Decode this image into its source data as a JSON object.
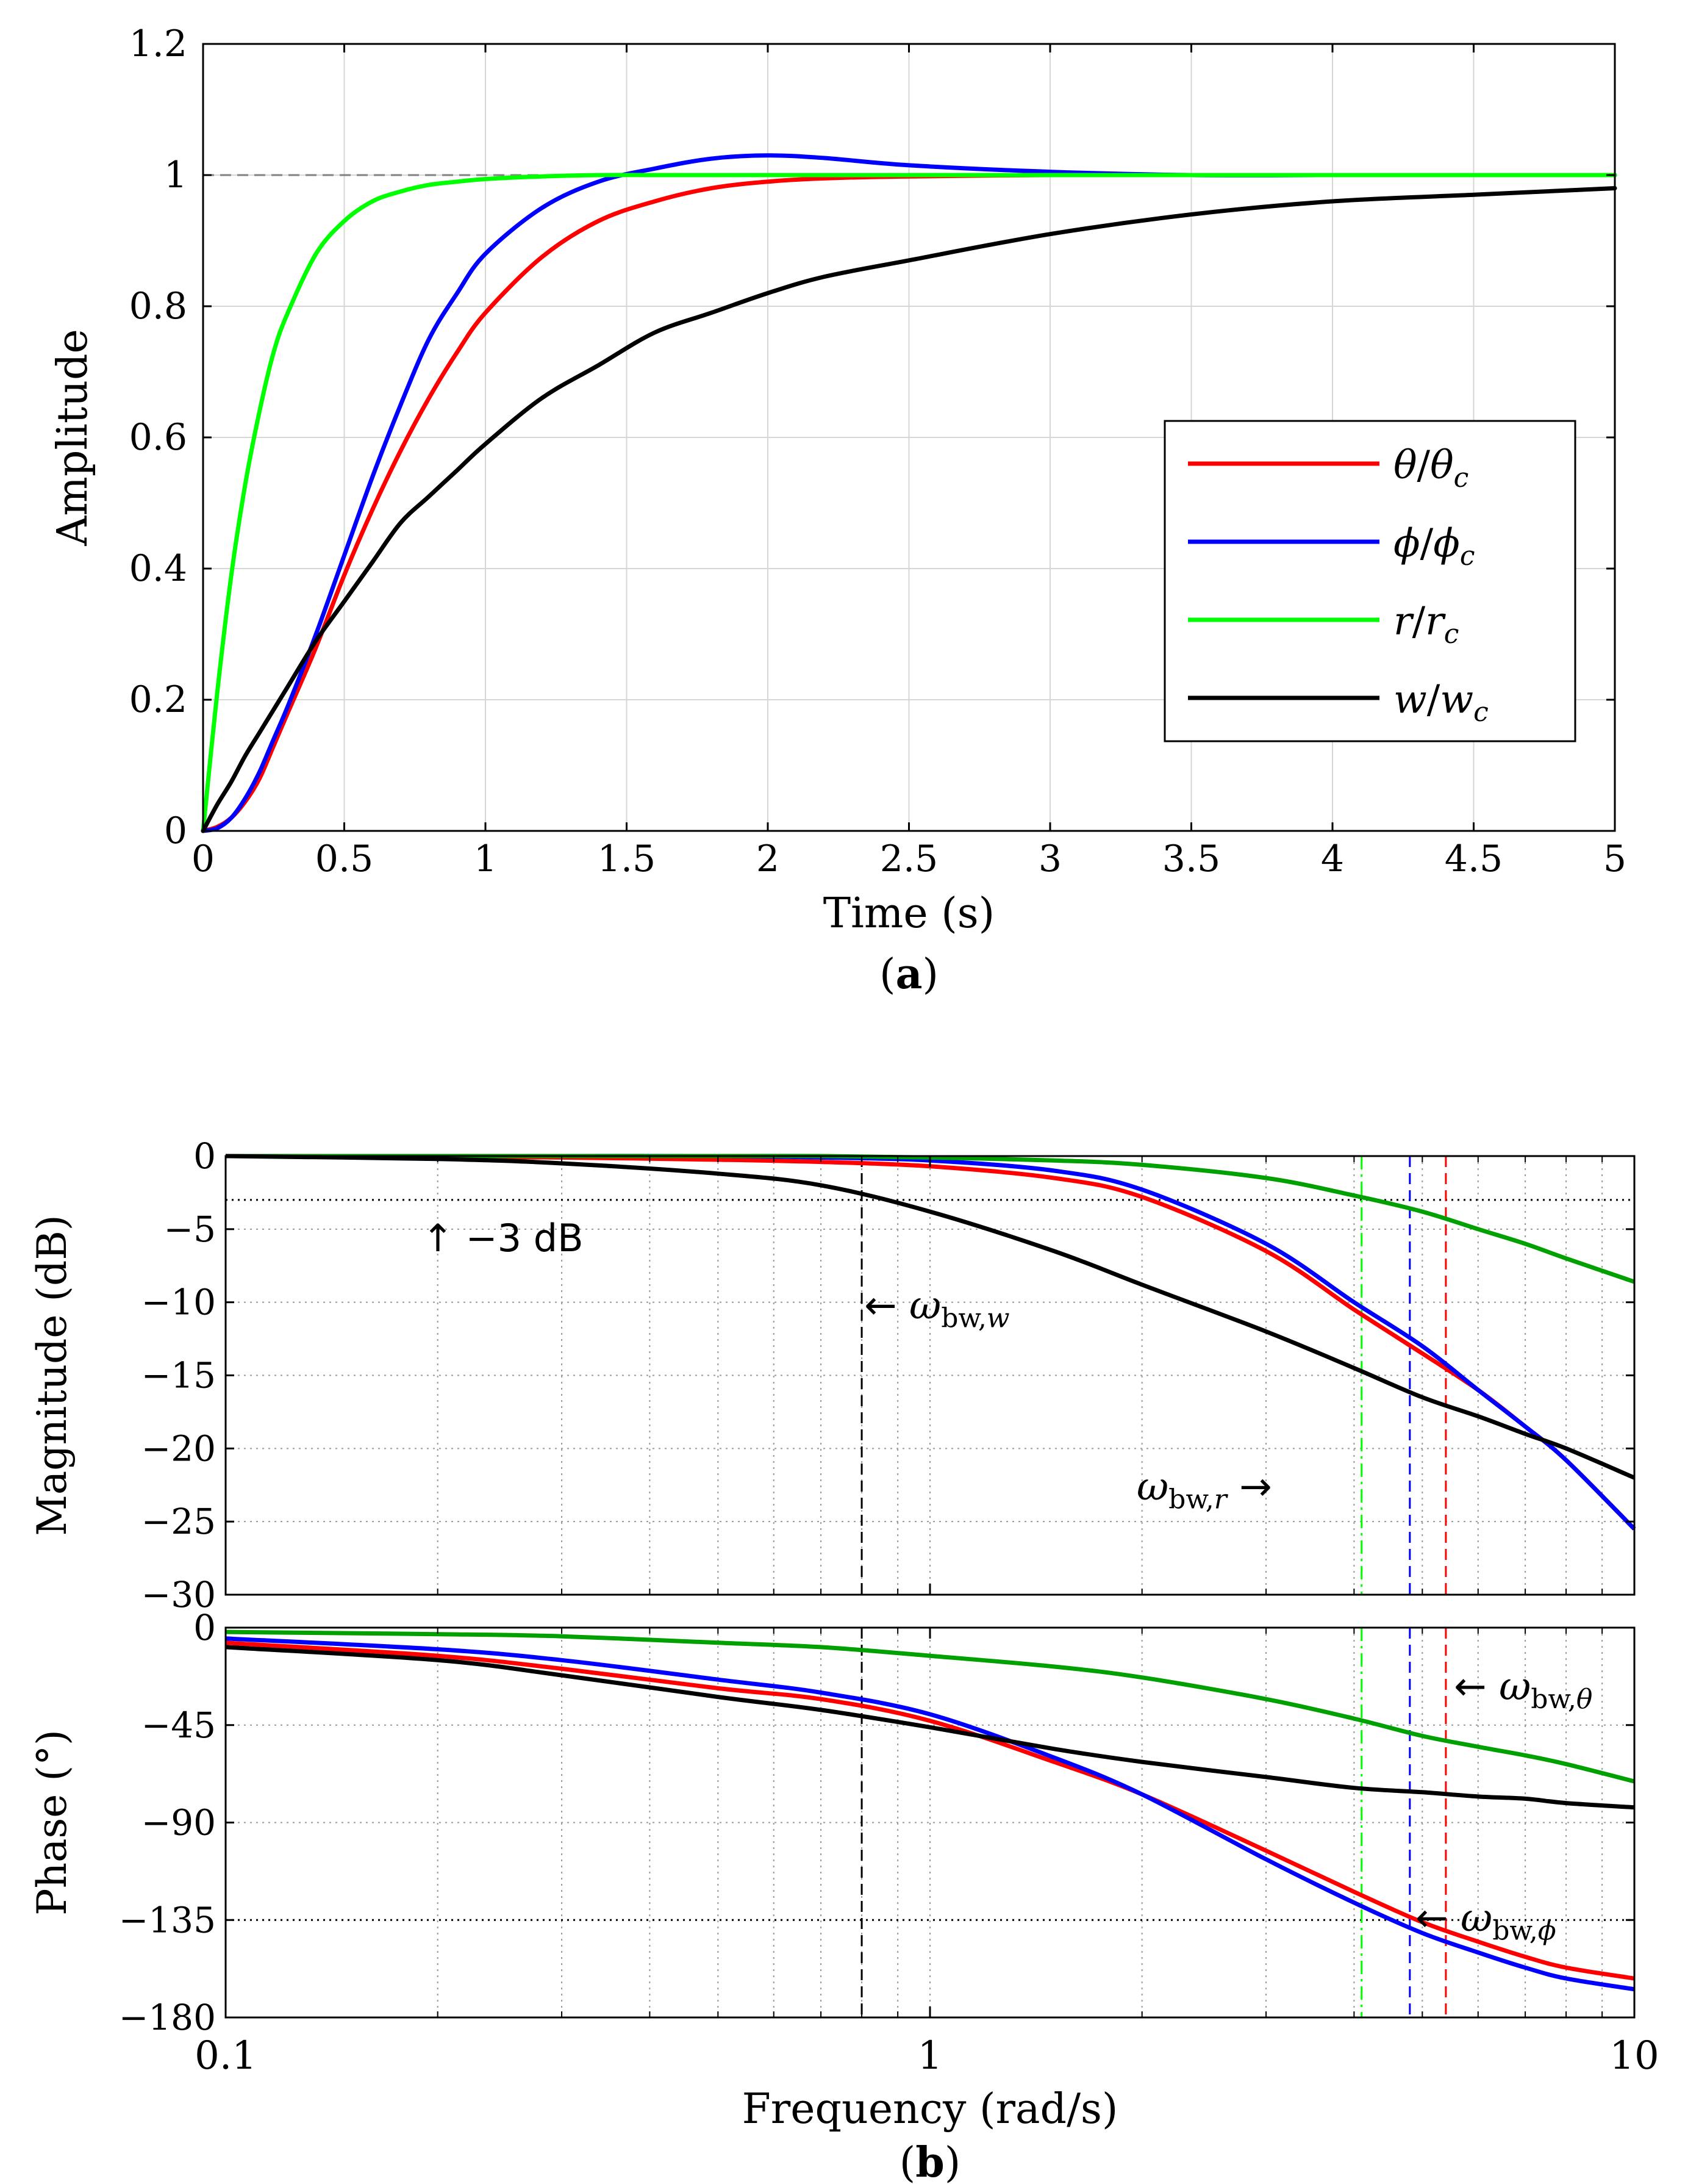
{
  "chart_data": [
    {
      "id": "a",
      "type": "line",
      "panel_label": "(a)",
      "xlabel": "Time (s)",
      "ylabel": "Amplitude",
      "xlim": [
        0,
        5
      ],
      "ylim": [
        0,
        1.2
      ],
      "xticks": [
        0,
        0.5,
        1,
        1.5,
        2,
        2.5,
        3,
        3.5,
        4,
        4.5,
        5
      ],
      "xtick_labels": [
        "0",
        "0.5",
        "1",
        "1.5",
        "2",
        "2.5",
        "3",
        "3.5",
        "4",
        "4.5",
        "5"
      ],
      "yticks": [
        0,
        0.2,
        0.4,
        0.6,
        0.8,
        1,
        1.2
      ],
      "ytick_labels": [
        "0",
        "0.2",
        "0.4",
        "0.6",
        "0.8",
        "1",
        "1.2"
      ],
      "grid": true,
      "reference_line": {
        "y": 1,
        "style": "dashed",
        "color": "#808080"
      },
      "legend": {
        "placement": "right-center",
        "entries": [
          {
            "label": "θ/θc",
            "num": "θ",
            "den": "θ",
            "sub": "c",
            "color": "#ff0000"
          },
          {
            "label": "ϕ/ϕc",
            "num": "ϕ",
            "den": "ϕ",
            "sub": "c",
            "color": "#0000ff"
          },
          {
            "label": "r/rc",
            "num": "r",
            "den": "r",
            "sub": "c",
            "color": "#00ff00"
          },
          {
            "label": "w/wc",
            "num": "w",
            "den": "w",
            "sub": "c",
            "color": "#000000"
          }
        ]
      },
      "x": [
        0,
        0.05,
        0.1,
        0.15,
        0.2,
        0.25,
        0.3,
        0.4,
        0.5,
        0.6,
        0.7,
        0.8,
        0.9,
        1.0,
        1.2,
        1.4,
        1.6,
        1.8,
        2.0,
        2.2,
        2.5,
        3.0,
        3.5,
        4.0,
        4.5,
        5.0
      ],
      "series": [
        {
          "name": "θ/θc",
          "color": "#ff0000",
          "values": [
            0,
            0.006,
            0.02,
            0.045,
            0.08,
            0.13,
            0.18,
            0.28,
            0.39,
            0.49,
            0.58,
            0.66,
            0.73,
            0.79,
            0.875,
            0.93,
            0.96,
            0.98,
            0.99,
            0.995,
            0.998,
            1.0,
            1.0,
            1.0,
            1.0,
            1.0
          ]
        },
        {
          "name": "ϕ/ϕc",
          "color": "#0000ff",
          "values": [
            0,
            0.004,
            0.02,
            0.05,
            0.09,
            0.14,
            0.19,
            0.3,
            0.42,
            0.54,
            0.65,
            0.75,
            0.82,
            0.88,
            0.95,
            0.99,
            1.01,
            1.025,
            1.03,
            1.026,
            1.015,
            1.005,
            1.0,
            1.0,
            1.0,
            1.0
          ]
        },
        {
          "name": "r/rc",
          "color": "#00ff00",
          "values": [
            0,
            0.21,
            0.39,
            0.53,
            0.64,
            0.73,
            0.79,
            0.88,
            0.93,
            0.96,
            0.975,
            0.985,
            0.99,
            0.994,
            0.998,
            1.0,
            1.0,
            1.0,
            1.0,
            1.0,
            1.0,
            1.0,
            1.0,
            1.0,
            1.0,
            1.0
          ]
        },
        {
          "name": "w/wc",
          "color": "#000000",
          "values": [
            0,
            0.04,
            0.075,
            0.115,
            0.15,
            0.185,
            0.22,
            0.29,
            0.35,
            0.41,
            0.47,
            0.51,
            0.55,
            0.59,
            0.66,
            0.71,
            0.76,
            0.79,
            0.82,
            0.845,
            0.87,
            0.91,
            0.94,
            0.96,
            0.97,
            0.98
          ]
        }
      ]
    },
    {
      "id": "b-mag",
      "type": "line",
      "panel_label": "(b)",
      "xlabel": "Frequency (rad/s)",
      "ylabel": "Magnitude (dB)",
      "xscale": "log",
      "xlim": [
        0.1,
        10
      ],
      "ylim": [
        -30,
        0
      ],
      "yticks": [
        0,
        -5,
        -10,
        -15,
        -20,
        -25,
        -30
      ],
      "ytick_labels": [
        "0",
        "−5",
        "−10",
        "−15",
        "−20",
        "−25",
        "−30"
      ],
      "xticks": [
        0.1,
        1,
        10
      ],
      "xtick_labels": [
        "0.1",
        "1",
        "10"
      ],
      "grid": true,
      "reference_line": {
        "y": -3,
        "style": "dotted",
        "color": "#000000"
      },
      "annotations": [
        {
          "arrow": "↑",
          "text": "−3 dB",
          "x": 0.19,
          "y": -5.6
        },
        {
          "arrow": "←",
          "omega": "ω",
          "sub": "bw,",
          "subvar": "w",
          "x": 0.8,
          "y": -10.2
        },
        {
          "arrow": "→",
          "omega": "ω",
          "sub": "bw,",
          "subvar": "r",
          "x": 1.95,
          "y": -22.6,
          "arrow_after": true
        }
      ],
      "bandwidth_markers": [
        {
          "series": "w",
          "freq": 0.8,
          "color": "#000000",
          "style": "dashed"
        },
        {
          "series": "r",
          "freq": 4.1,
          "color": "#00ff00",
          "style": "dashdot"
        },
        {
          "series": "ϕ",
          "freq": 4.8,
          "color": "#0000ff",
          "style": "dashed"
        },
        {
          "series": "θ",
          "freq": 5.4,
          "color": "#ff0000",
          "style": "dashed"
        }
      ],
      "x": [
        0.1,
        0.2,
        0.3,
        0.5,
        0.7,
        1.0,
        1.5,
        2.0,
        3.0,
        4.0,
        5.0,
        6.0,
        7.0,
        8.0,
        10.0
      ],
      "series": [
        {
          "name": "θ",
          "color": "#ff0000",
          "values": [
            0,
            -0.05,
            -0.1,
            -0.25,
            -0.4,
            -0.7,
            -1.5,
            -2.8,
            -6.5,
            -10.5,
            -13.5,
            -16.0,
            -18.5,
            -20.8,
            -25.5
          ]
        },
        {
          "name": "ϕ",
          "color": "#0000ff",
          "values": [
            0,
            0,
            0,
            0,
            -0.1,
            -0.3,
            -1.0,
            -2.3,
            -6.0,
            -10.0,
            -13.0,
            -16.0,
            -18.5,
            -20.8,
            -25.5
          ]
        },
        {
          "name": "r",
          "color": "#00a000",
          "values": [
            0,
            0,
            0,
            0,
            0,
            -0.1,
            -0.3,
            -0.6,
            -1.5,
            -2.7,
            -3.8,
            -5.0,
            -6.0,
            -7.0,
            -8.6
          ]
        },
        {
          "name": "w",
          "color": "#000000",
          "values": [
            0,
            -0.2,
            -0.5,
            -1.2,
            -2.0,
            -3.8,
            -6.5,
            -8.8,
            -12.0,
            -14.5,
            -16.5,
            -17.8,
            -19.0,
            -20.0,
            -22.0
          ]
        }
      ]
    },
    {
      "id": "b-phase",
      "type": "line",
      "xlabel": "Frequency (rad/s)",
      "ylabel": "Phase (°)",
      "xscale": "log",
      "xlim": [
        0.1,
        10
      ],
      "ylim": [
        -180,
        0
      ],
      "yticks": [
        0,
        -45,
        -90,
        -135,
        -180
      ],
      "ytick_labels": [
        "0",
        "−45",
        "−90",
        "−135",
        "−180"
      ],
      "xticks": [
        0.1,
        1,
        10
      ],
      "xtick_labels": [
        "0.1",
        "1",
        "10"
      ],
      "grid": true,
      "reference_line": {
        "y": -135,
        "style": "dotted",
        "color": "#000000"
      },
      "annotations": [
        {
          "arrow": "←",
          "omega": "ω",
          "sub": "bw,",
          "subvar": "θ",
          "x": 5.5,
          "y": -27
        },
        {
          "arrow": "←",
          "omega": "ω",
          "sub": "bw,",
          "subvar": "ϕ",
          "x": 4.85,
          "y": -134
        }
      ],
      "x": [
        0.1,
        0.2,
        0.3,
        0.5,
        0.7,
        1.0,
        1.5,
        2.0,
        3.0,
        4.0,
        5.0,
        6.0,
        7.0,
        8.0,
        10.0
      ],
      "series": [
        {
          "name": "θ",
          "color": "#ff0000",
          "values": [
            -7,
            -13,
            -19,
            -28,
            -33,
            -43,
            -62,
            -77,
            -103,
            -122,
            -136,
            -145,
            -152,
            -157,
            -162
          ]
        },
        {
          "name": "ϕ",
          "color": "#0000ff",
          "values": [
            -5,
            -10,
            -15,
            -24,
            -30,
            -40,
            -60,
            -77,
            -107,
            -127,
            -141,
            -150,
            -157,
            -162,
            -167
          ]
        },
        {
          "name": "r",
          "color": "#00a000",
          "values": [
            -2,
            -3,
            -4,
            -7,
            -9,
            -13,
            -18,
            -23,
            -33,
            -42,
            -50,
            -55,
            -59,
            -63,
            -71
          ]
        },
        {
          "name": "w",
          "color": "#000000",
          "values": [
            -9,
            -15,
            -22,
            -32,
            -38,
            -46,
            -56,
            -62,
            -69,
            -74,
            -76,
            -78,
            -79,
            -81,
            -83
          ]
        }
      ]
    }
  ]
}
